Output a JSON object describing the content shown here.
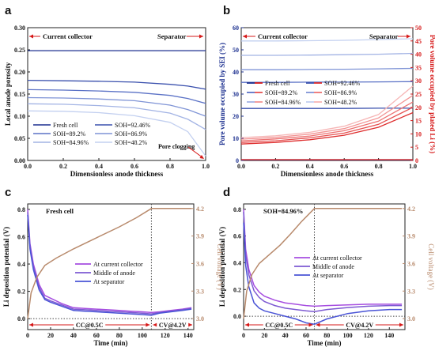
{
  "chart_data": [
    {
      "panel": "a",
      "type": "line",
      "xlabel": "Dimensionless anode thickness",
      "ylabel": "Local anode porosity",
      "xlim": [
        0,
        1
      ],
      "ylim": [
        0,
        0.3
      ],
      "xticks": [
        "0.0",
        "0.2",
        "0.4",
        "0.6",
        "0.8",
        "1.0"
      ],
      "yticks": [
        "0.00",
        "0.05",
        "0.10",
        "0.15",
        "0.20",
        "0.25",
        "0.30"
      ],
      "annotations": {
        "left": "Current collector",
        "right": "Separator",
        "clog": "Pore clogging"
      },
      "series": [
        {
          "name": "Fresh cell",
          "color": "#1b2f8f",
          "x": [
            0,
            0.2,
            0.4,
            0.6,
            0.8,
            1.0
          ],
          "y": [
            0.248,
            0.248,
            0.248,
            0.248,
            0.248,
            0.248
          ]
        },
        {
          "name": "SOH=92.46%",
          "color": "#3a50ad",
          "x": [
            0,
            0.2,
            0.4,
            0.6,
            0.8,
            0.9,
            1.0
          ],
          "y": [
            0.181,
            0.18,
            0.179,
            0.177,
            0.172,
            0.168,
            0.161
          ]
        },
        {
          "name": "SOH=89.2%",
          "color": "#5b72c6",
          "x": [
            0,
            0.2,
            0.4,
            0.6,
            0.8,
            0.9,
            1.0
          ],
          "y": [
            0.16,
            0.159,
            0.157,
            0.154,
            0.147,
            0.14,
            0.129
          ]
        },
        {
          "name": "SOH=86.9%",
          "color": "#7f94d6",
          "x": [
            0,
            0.2,
            0.4,
            0.6,
            0.8,
            0.9,
            1.0
          ],
          "y": [
            0.142,
            0.141,
            0.139,
            0.135,
            0.125,
            0.115,
            0.1
          ]
        },
        {
          "name": "SOH=84.96%",
          "color": "#a2b3e4",
          "x": [
            0,
            0.2,
            0.4,
            0.6,
            0.8,
            0.9,
            1.0
          ],
          "y": [
            0.128,
            0.127,
            0.124,
            0.119,
            0.107,
            0.093,
            0.07
          ]
        },
        {
          "name": "SOH=48.2%",
          "color": "#c3d0f0",
          "x": [
            0,
            0.2,
            0.4,
            0.6,
            0.8,
            0.9,
            1.0
          ],
          "y": [
            0.112,
            0.111,
            0.108,
            0.101,
            0.086,
            0.065,
            0.01
          ]
        }
      ]
    },
    {
      "panel": "b",
      "type": "line",
      "xlabel": "Dimensionless anode thickness",
      "ylabel": "Pore volume occupied by SEI (%)",
      "ylabel_right": "Pore volume occupied by plated Li (%)",
      "xlim": [
        0,
        1
      ],
      "ylim": [
        0,
        60
      ],
      "ylim_right": [
        0,
        50
      ],
      "xticks": [
        "0.0",
        "0.2",
        "0.4",
        "0.6",
        "0.8",
        "1.0"
      ],
      "yticks": [
        "0",
        "10",
        "20",
        "30",
        "40",
        "50",
        "60"
      ],
      "yticks_right": [
        "0",
        "5",
        "10",
        "15",
        "20",
        "25",
        "30",
        "35",
        "40",
        "45",
        "50"
      ],
      "annotations": {
        "left": "Current collector",
        "right": "Separator"
      },
      "legend": [
        "Fresh cell",
        "SOH=92.46%",
        "SOH=89.2%",
        "SOH=86.9%",
        "SOH=84.96%",
        "SOH=48.2%"
      ],
      "series_sei": [
        {
          "name": "Fresh cell",
          "color": "#1b2f8f",
          "y": [
            0.2,
            0.2,
            0.2,
            0.2,
            0.2,
            0.2
          ]
        },
        {
          "name": "SOH=92.46%",
          "color": "#3a50ad",
          "y": [
            23.5,
            23.5,
            23.5,
            23.5,
            23.6,
            23.6
          ]
        },
        {
          "name": "SOH=89.2%",
          "color": "#5b72c6",
          "y": [
            35.3,
            35.3,
            35.4,
            35.4,
            35.5,
            35.6
          ]
        },
        {
          "name": "SOH=86.9%",
          "color": "#7f94d6",
          "y": [
            41.0,
            41.0,
            41.1,
            41.2,
            41.4,
            41.6
          ]
        },
        {
          "name": "SOH=84.96%",
          "color": "#a2b3e4",
          "y": [
            47.5,
            47.5,
            47.6,
            47.8,
            48.0,
            48.4
          ]
        },
        {
          "name": "SOH=48.2%",
          "color": "#c3d0f0",
          "y": [
            54.0,
            54.0,
            54.1,
            54.3,
            54.6,
            55.0
          ]
        }
      ],
      "series_li": [
        {
          "name": "Fresh cell",
          "color": "#d61818",
          "y": [
            0.3,
            0.3,
            0.3,
            0.3,
            0.3,
            0.3
          ]
        },
        {
          "name": "SOH=92.46%",
          "color": "#de2c2c",
          "y": [
            6.2,
            6.8,
            7.8,
            9.5,
            12.5,
            18.0
          ]
        },
        {
          "name": "SOH=89.2%",
          "color": "#e65050",
          "y": [
            6.8,
            7.4,
            8.5,
            10.3,
            13.6,
            20.0
          ]
        },
        {
          "name": "SOH=86.9%",
          "color": "#ec7272",
          "y": [
            7.4,
            8.1,
            9.2,
            11.2,
            14.8,
            22.0
          ]
        },
        {
          "name": "SOH=84.96%",
          "color": "#f29393",
          "y": [
            8.0,
            8.7,
            9.9,
            12.0,
            16.0,
            24.5
          ]
        },
        {
          "name": "SOH=48.2%",
          "color": "#f6b5b5",
          "y": [
            8.6,
            9.3,
            10.6,
            12.9,
            17.3,
            28.0
          ]
        }
      ],
      "x": [
        0,
        0.2,
        0.4,
        0.6,
        0.8,
        1.0
      ]
    },
    {
      "panel": "c",
      "type": "line",
      "title": "Fresh cell",
      "xlabel": "Time (min)",
      "ylabel": "Li deposition potential (V)",
      "ylabel_right": "Cell voltage (V)",
      "xlim": [
        0,
        145
      ],
      "ylim": [
        -0.08,
        0.84
      ],
      "ylim_right": [
        2.88,
        4.25
      ],
      "xticks": [
        "0",
        "20",
        "40",
        "60",
        "80",
        "100",
        "120",
        "140"
      ],
      "yticks": [
        "0.0",
        "0.2",
        "0.4",
        "0.6",
        "0.8"
      ],
      "yticks_right": [
        "3.0",
        "3.3",
        "3.6",
        "3.9",
        "4.2"
      ],
      "annotations": {
        "cc": "CC@0.5C",
        "cv": "CV@4.2V"
      },
      "cv_start": 108,
      "series": [
        {
          "name": "At current collector",
          "color": "#a64ee0",
          "x": [
            0,
            2,
            5,
            10,
            15,
            20,
            30,
            40,
            50,
            60,
            70,
            80,
            90,
            100,
            108,
            115,
            125,
            135,
            143
          ],
          "y": [
            0.8,
            0.55,
            0.4,
            0.25,
            0.17,
            0.15,
            0.11,
            0.08,
            0.075,
            0.07,
            0.065,
            0.06,
            0.055,
            0.05,
            0.045,
            0.05,
            0.06,
            0.07,
            0.08
          ]
        },
        {
          "name": "Middle of anode",
          "color": "#7d5ad2",
          "x": [
            0,
            2,
            5,
            10,
            15,
            20,
            30,
            40,
            50,
            60,
            70,
            80,
            90,
            100,
            108,
            115,
            125,
            135,
            143
          ],
          "y": [
            0.78,
            0.53,
            0.38,
            0.23,
            0.15,
            0.13,
            0.1,
            0.07,
            0.065,
            0.06,
            0.055,
            0.05,
            0.045,
            0.04,
            0.035,
            0.045,
            0.055,
            0.065,
            0.075
          ]
        },
        {
          "name": "At separator",
          "color": "#4a54d6",
          "x": [
            0,
            2,
            5,
            10,
            15,
            20,
            30,
            40,
            50,
            60,
            70,
            80,
            90,
            100,
            108,
            115,
            125,
            135,
            143
          ],
          "y": [
            0.76,
            0.51,
            0.36,
            0.21,
            0.14,
            0.12,
            0.09,
            0.06,
            0.055,
            0.05,
            0.045,
            0.04,
            0.035,
            0.03,
            0.025,
            0.04,
            0.05,
            0.06,
            0.07
          ]
        },
        {
          "name": "Cell voltage",
          "color": "#b88a6c",
          "axis": "right",
          "x": [
            0,
            3,
            8,
            15,
            25,
            40,
            60,
            80,
            95,
            108,
            143
          ],
          "y": [
            3.0,
            3.28,
            3.45,
            3.58,
            3.66,
            3.76,
            3.88,
            4.0,
            4.1,
            4.2,
            4.2
          ]
        }
      ]
    },
    {
      "panel": "d",
      "type": "line",
      "title": "SOH=84.96%",
      "xlabel": "Time (min)",
      "ylabel": "Li deposition potential (V)",
      "ylabel_right": "Cell voltage (V)",
      "xlim": [
        0,
        155
      ],
      "ylim": [
        -0.1,
        0.84
      ],
      "ylim_right": [
        2.88,
        4.25
      ],
      "xticks": [
        "0",
        "20",
        "40",
        "60",
        "80",
        "100",
        "120",
        "140"
      ],
      "yticks": [
        "0.0",
        "0.2",
        "0.4",
        "0.6",
        "0.8"
      ],
      "yticks_right": [
        "3.0",
        "3.3",
        "3.6",
        "3.9",
        "4.2"
      ],
      "annotations": {
        "cc": "CC@0.5C",
        "cv": "CV@4.2V"
      },
      "cv_start": 68,
      "series": [
        {
          "name": "At current collector",
          "color": "#a64ee0",
          "x": [
            0,
            2,
            5,
            10,
            15,
            20,
            30,
            40,
            50,
            60,
            68,
            80,
            100,
            120,
            140,
            152
          ],
          "y": [
            0.8,
            0.5,
            0.35,
            0.23,
            0.18,
            0.15,
            0.12,
            0.1,
            0.09,
            0.08,
            0.075,
            0.08,
            0.085,
            0.09,
            0.09,
            0.09
          ]
        },
        {
          "name": "Middle of anode",
          "color": "#7d5ad2",
          "x": [
            0,
            2,
            5,
            10,
            15,
            20,
            30,
            40,
            50,
            60,
            68,
            80,
            100,
            120,
            140,
            152
          ],
          "y": [
            0.78,
            0.46,
            0.31,
            0.19,
            0.14,
            0.11,
            0.08,
            0.06,
            0.05,
            0.04,
            0.035,
            0.05,
            0.065,
            0.075,
            0.08,
            0.08
          ]
        },
        {
          "name": "At separator",
          "color": "#4a54d6",
          "x": [
            0,
            2,
            5,
            10,
            15,
            20,
            30,
            40,
            50,
            60,
            68,
            80,
            100,
            120,
            140,
            152
          ],
          "y": [
            0.7,
            0.38,
            0.22,
            0.1,
            0.06,
            0.04,
            0.02,
            0.0,
            -0.02,
            -0.05,
            -0.06,
            -0.02,
            0.02,
            0.04,
            0.05,
            0.05
          ]
        },
        {
          "name": "Cell voltage",
          "color": "#b88a6c",
          "axis": "right",
          "x": [
            0,
            3,
            8,
            15,
            25,
            35,
            45,
            55,
            68,
            152
          ],
          "y": [
            3.0,
            3.3,
            3.48,
            3.6,
            3.7,
            3.8,
            3.92,
            4.05,
            4.2,
            4.2
          ]
        }
      ]
    }
  ]
}
